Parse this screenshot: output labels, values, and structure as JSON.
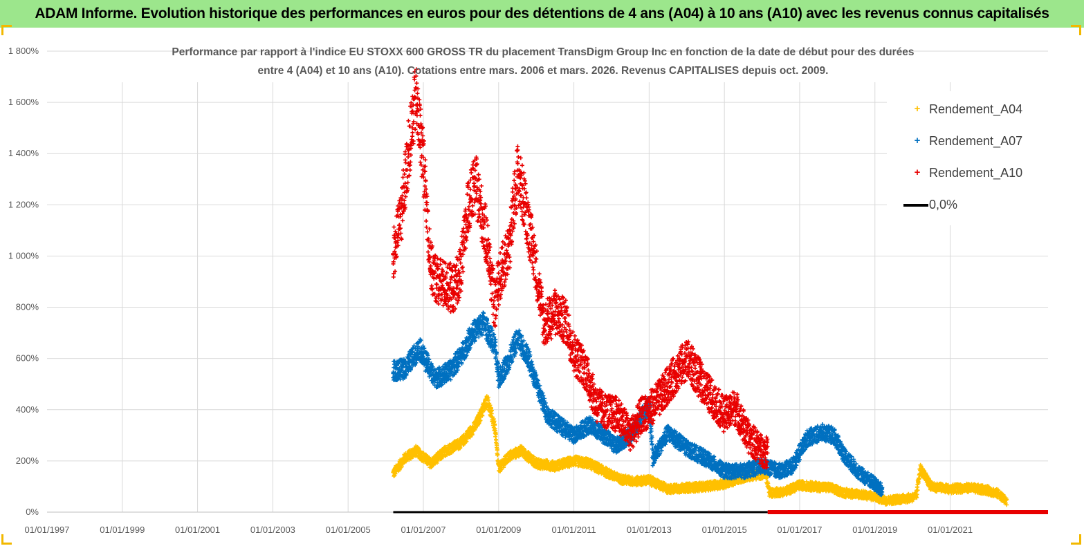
{
  "banner": {
    "title": "ADAM Informe. Evolution historique des performances en euros pour des détentions de 4 ans (A04) à 10 ans (A10) avec les revenus connus capitalisés",
    "background_color": "#9ce68c"
  },
  "chart_data": {
    "type": "scatter",
    "title_line1": "Performance par rapport à l'indice EU STOXX 600 GROSS TR  du placement TransDigm Group Inc en fonction de la date de début pour des durées",
    "title_line2": "entre 4 (A04) et 10 ans (A10). Cotations entre mars. 2006 et mars. 2026. Revenus CAPITALISES depuis oct. 2009.",
    "xlabel": "",
    "ylabel": "",
    "x_ticks": [
      "01/01/1997",
      "01/01/1999",
      "01/01/2001",
      "01/01/2003",
      "01/01/2005",
      "01/01/2007",
      "01/01/2009",
      "01/01/2011",
      "01/01/2013",
      "01/01/2015",
      "01/01/2017",
      "01/01/2019",
      "01/01/2021"
    ],
    "x_range_years": [
      1997,
      2023.6
    ],
    "y_ticks": [
      "0%",
      "200%",
      "400%",
      "600%",
      "800%",
      "1 000%",
      "1 200%",
      "1 400%",
      "1 600%",
      "1 800%"
    ],
    "ylim": [
      0,
      1800
    ],
    "grid": "vertical and horizontal, light grey",
    "legend_position": "right",
    "series": [
      {
        "name": "Rendement_A04",
        "color": "#ffc000",
        "x_start": 2006.2,
        "x_end": 2022.5,
        "anchors_x": [
          2006.2,
          2006.5,
          2006.8,
          2007.2,
          2007.6,
          2008.0,
          2008.4,
          2008.7,
          2008.9,
          2009.0,
          2009.3,
          2009.6,
          2010.0,
          2010.5,
          2011.0,
          2011.4,
          2011.8,
          2012.2,
          2012.6,
          2013.0,
          2013.5,
          2014.0,
          2014.5,
          2015.0,
          2015.6,
          2016.1,
          2016.2,
          2016.6,
          2017.0,
          2017.4,
          2017.8,
          2018.2,
          2018.6,
          2019.0,
          2019.3,
          2019.6,
          2019.9,
          2020.1,
          2020.2,
          2020.5,
          2021.0,
          2021.5,
          2022.0,
          2022.3,
          2022.5
        ],
        "anchors_y": [
          150,
          210,
          240,
          190,
          240,
          270,
          340,
          440,
          330,
          170,
          220,
          240,
          190,
          180,
          200,
          190,
          160,
          130,
          120,
          125,
          90,
          95,
          100,
          110,
          140,
          150,
          75,
          80,
          105,
          100,
          95,
          75,
          70,
          60,
          45,
          50,
          55,
          60,
          170,
          100,
          90,
          95,
          85,
          70,
          40
        ],
        "spread": 22
      },
      {
        "name": "Rendement_A07",
        "color": "#0070c0",
        "x_start": 2006.2,
        "x_end": 2019.2,
        "anchors_x": [
          2006.2,
          2006.5,
          2006.9,
          2007.3,
          2007.7,
          2008.0,
          2008.3,
          2008.6,
          2008.9,
          2009.0,
          2009.3,
          2009.5,
          2009.8,
          2010.0,
          2010.3,
          2010.7,
          2011.0,
          2011.4,
          2011.8,
          2012.1,
          2012.5,
          2013.0,
          2013.1,
          2013.5,
          2014.0,
          2014.5,
          2015.0,
          2015.5,
          2016.0,
          2016.5,
          2016.8,
          2017.2,
          2017.6,
          2017.9,
          2018.2,
          2018.6,
          2019.0,
          2019.2
        ],
        "anchors_y": [
          550,
          560,
          640,
          520,
          550,
          610,
          700,
          740,
          650,
          520,
          600,
          680,
          600,
          500,
          380,
          330,
          300,
          340,
          300,
          260,
          300,
          420,
          210,
          310,
          250,
          210,
          160,
          160,
          180,
          160,
          180,
          290,
          310,
          300,
          220,
          150,
          110,
          80
        ],
        "spread": 35
      },
      {
        "name": "Rendement_A10",
        "color": "#e80000",
        "x_start": 2006.2,
        "x_end": 2016.15,
        "anchors_x": [
          2006.2,
          2006.4,
          2006.6,
          2006.8,
          2007.0,
          2007.2,
          2007.4,
          2007.8,
          2008.0,
          2008.2,
          2008.4,
          2008.7,
          2008.9,
          2009.0,
          2009.3,
          2009.5,
          2009.7,
          2010.0,
          2010.2,
          2010.5,
          2010.8,
          2011.0,
          2011.3,
          2011.6,
          2011.9,
          2012.2,
          2012.5,
          2012.8,
          2013.0,
          2013.3,
          2013.7,
          2014.0,
          2014.3,
          2014.6,
          2015.0,
          2015.3,
          2015.6,
          2016.0,
          2016.15
        ],
        "anchors_y": [
          1000,
          1150,
          1400,
          1620,
          1380,
          950,
          900,
          870,
          950,
          1200,
          1280,
          1050,
          800,
          900,
          1050,
          1330,
          1200,
          950,
          730,
          780,
          740,
          620,
          560,
          420,
          390,
          380,
          300,
          380,
          400,
          450,
          540,
          600,
          530,
          460,
          380,
          410,
          300,
          240,
          230
        ],
        "spread": 70
      },
      {
        "name": "0,0%",
        "color": "#000000",
        "type": "line",
        "x": [
          2006.2,
          2016.15
        ],
        "y": [
          0,
          0
        ]
      }
    ],
    "a10_zero_segment": {
      "color": "#e80000",
      "x": [
        2016.15,
        2023.6
      ],
      "y": [
        0,
        0
      ]
    }
  },
  "legend": {
    "items": [
      {
        "label": "Rendement_A04",
        "marker": "+",
        "color": "#ffc000"
      },
      {
        "label": "Rendement_A07",
        "marker": "+",
        "color": "#0070c0"
      },
      {
        "label": "Rendement_A10",
        "marker": "+",
        "color": "#e80000"
      },
      {
        "label": "0,0%",
        "marker": "line",
        "color": "#000000"
      }
    ]
  }
}
